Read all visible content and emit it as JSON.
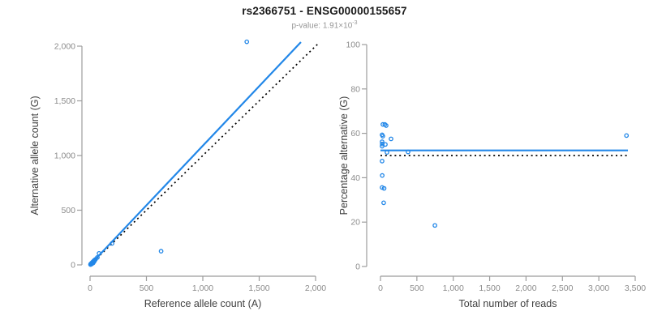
{
  "header": {
    "title": "rs2366751 - ENSG00000155657",
    "p_prefix": "p-value: 1.91×10",
    "p_exp": "-3"
  },
  "colors": {
    "accent": "#2287E8",
    "dotted": "#000000",
    "axis_line": "#9C9C9C",
    "tick_label": "#8C8C8C",
    "axis_title": "#404040",
    "title": "#1A1A1A",
    "subtitle": "#969696"
  },
  "chart_data": [
    {
      "type": "scatter",
      "panel": "ref-vs-alt-scatter",
      "xlabel": "Reference allele count (A)",
      "ylabel": "Alternative allele count (G)",
      "xlim": [
        0,
        2000
      ],
      "ylim": [
        0,
        2000
      ],
      "xticks": [
        0,
        500,
        1000,
        1500,
        2000
      ],
      "yticks": [
        0,
        500,
        1000,
        1500,
        2000
      ],
      "grid": false,
      "points": [
        [
          4,
          3
        ],
        [
          6,
          8
        ],
        [
          9,
          5
        ],
        [
          11,
          11
        ],
        [
          13,
          15
        ],
        [
          15,
          9
        ],
        [
          17,
          19
        ],
        [
          19,
          13
        ],
        [
          21,
          21
        ],
        [
          24,
          27
        ],
        [
          27,
          17
        ],
        [
          29,
          31
        ],
        [
          32,
          25
        ],
        [
          35,
          39
        ],
        [
          38,
          33
        ],
        [
          43,
          45
        ],
        [
          48,
          50
        ],
        [
          65,
          68
        ],
        [
          80,
          105
        ],
        [
          195,
          196
        ],
        [
          630,
          125
        ],
        [
          1390,
          2040
        ]
      ],
      "lines": [
        {
          "name": "identity-line",
          "style": "dotted",
          "x1": 0,
          "y1": 0,
          "x2": 2030,
          "y2": 2030
        },
        {
          "name": "regression-line",
          "style": "solid",
          "x1": 0,
          "y1": 0,
          "x2": 1870,
          "y2": 2037
        }
      ]
    },
    {
      "type": "scatter",
      "panel": "reads-vs-percentage-scatter",
      "xlabel": "Total number of reads",
      "ylabel": "Percentage alternative (G)",
      "xlim": [
        0,
        3500
      ],
      "ylim": [
        0,
        100
      ],
      "xticks": [
        0,
        500,
        1000,
        1500,
        2000,
        2500,
        3000,
        3500
      ],
      "yticks": [
        0,
        20,
        40,
        60,
        80,
        100
      ],
      "grid": false,
      "points": [
        [
          33,
          64
        ],
        [
          60,
          64
        ],
        [
          78,
          63.5
        ],
        [
          22,
          59.3
        ],
        [
          32,
          58.7
        ],
        [
          145,
          57.5
        ],
        [
          22,
          56.2
        ],
        [
          24,
          55.2
        ],
        [
          67,
          55
        ],
        [
          22,
          54.2
        ],
        [
          89,
          51.4
        ],
        [
          379,
          51.6
        ],
        [
          22,
          47.5
        ],
        [
          24,
          41
        ],
        [
          22,
          35.6
        ],
        [
          50,
          35.2
        ],
        [
          44,
          28.7
        ],
        [
          748,
          18.5
        ],
        [
          3380,
          59
        ]
      ],
      "lines": [
        {
          "name": "expected-line",
          "style": "dotted",
          "x1": 0,
          "y1": 50,
          "x2": 3400,
          "y2": 50
        },
        {
          "name": "regression-line",
          "style": "solid",
          "x1": 0,
          "y1": 52.3,
          "x2": 3400,
          "y2": 52.3
        }
      ]
    }
  ]
}
